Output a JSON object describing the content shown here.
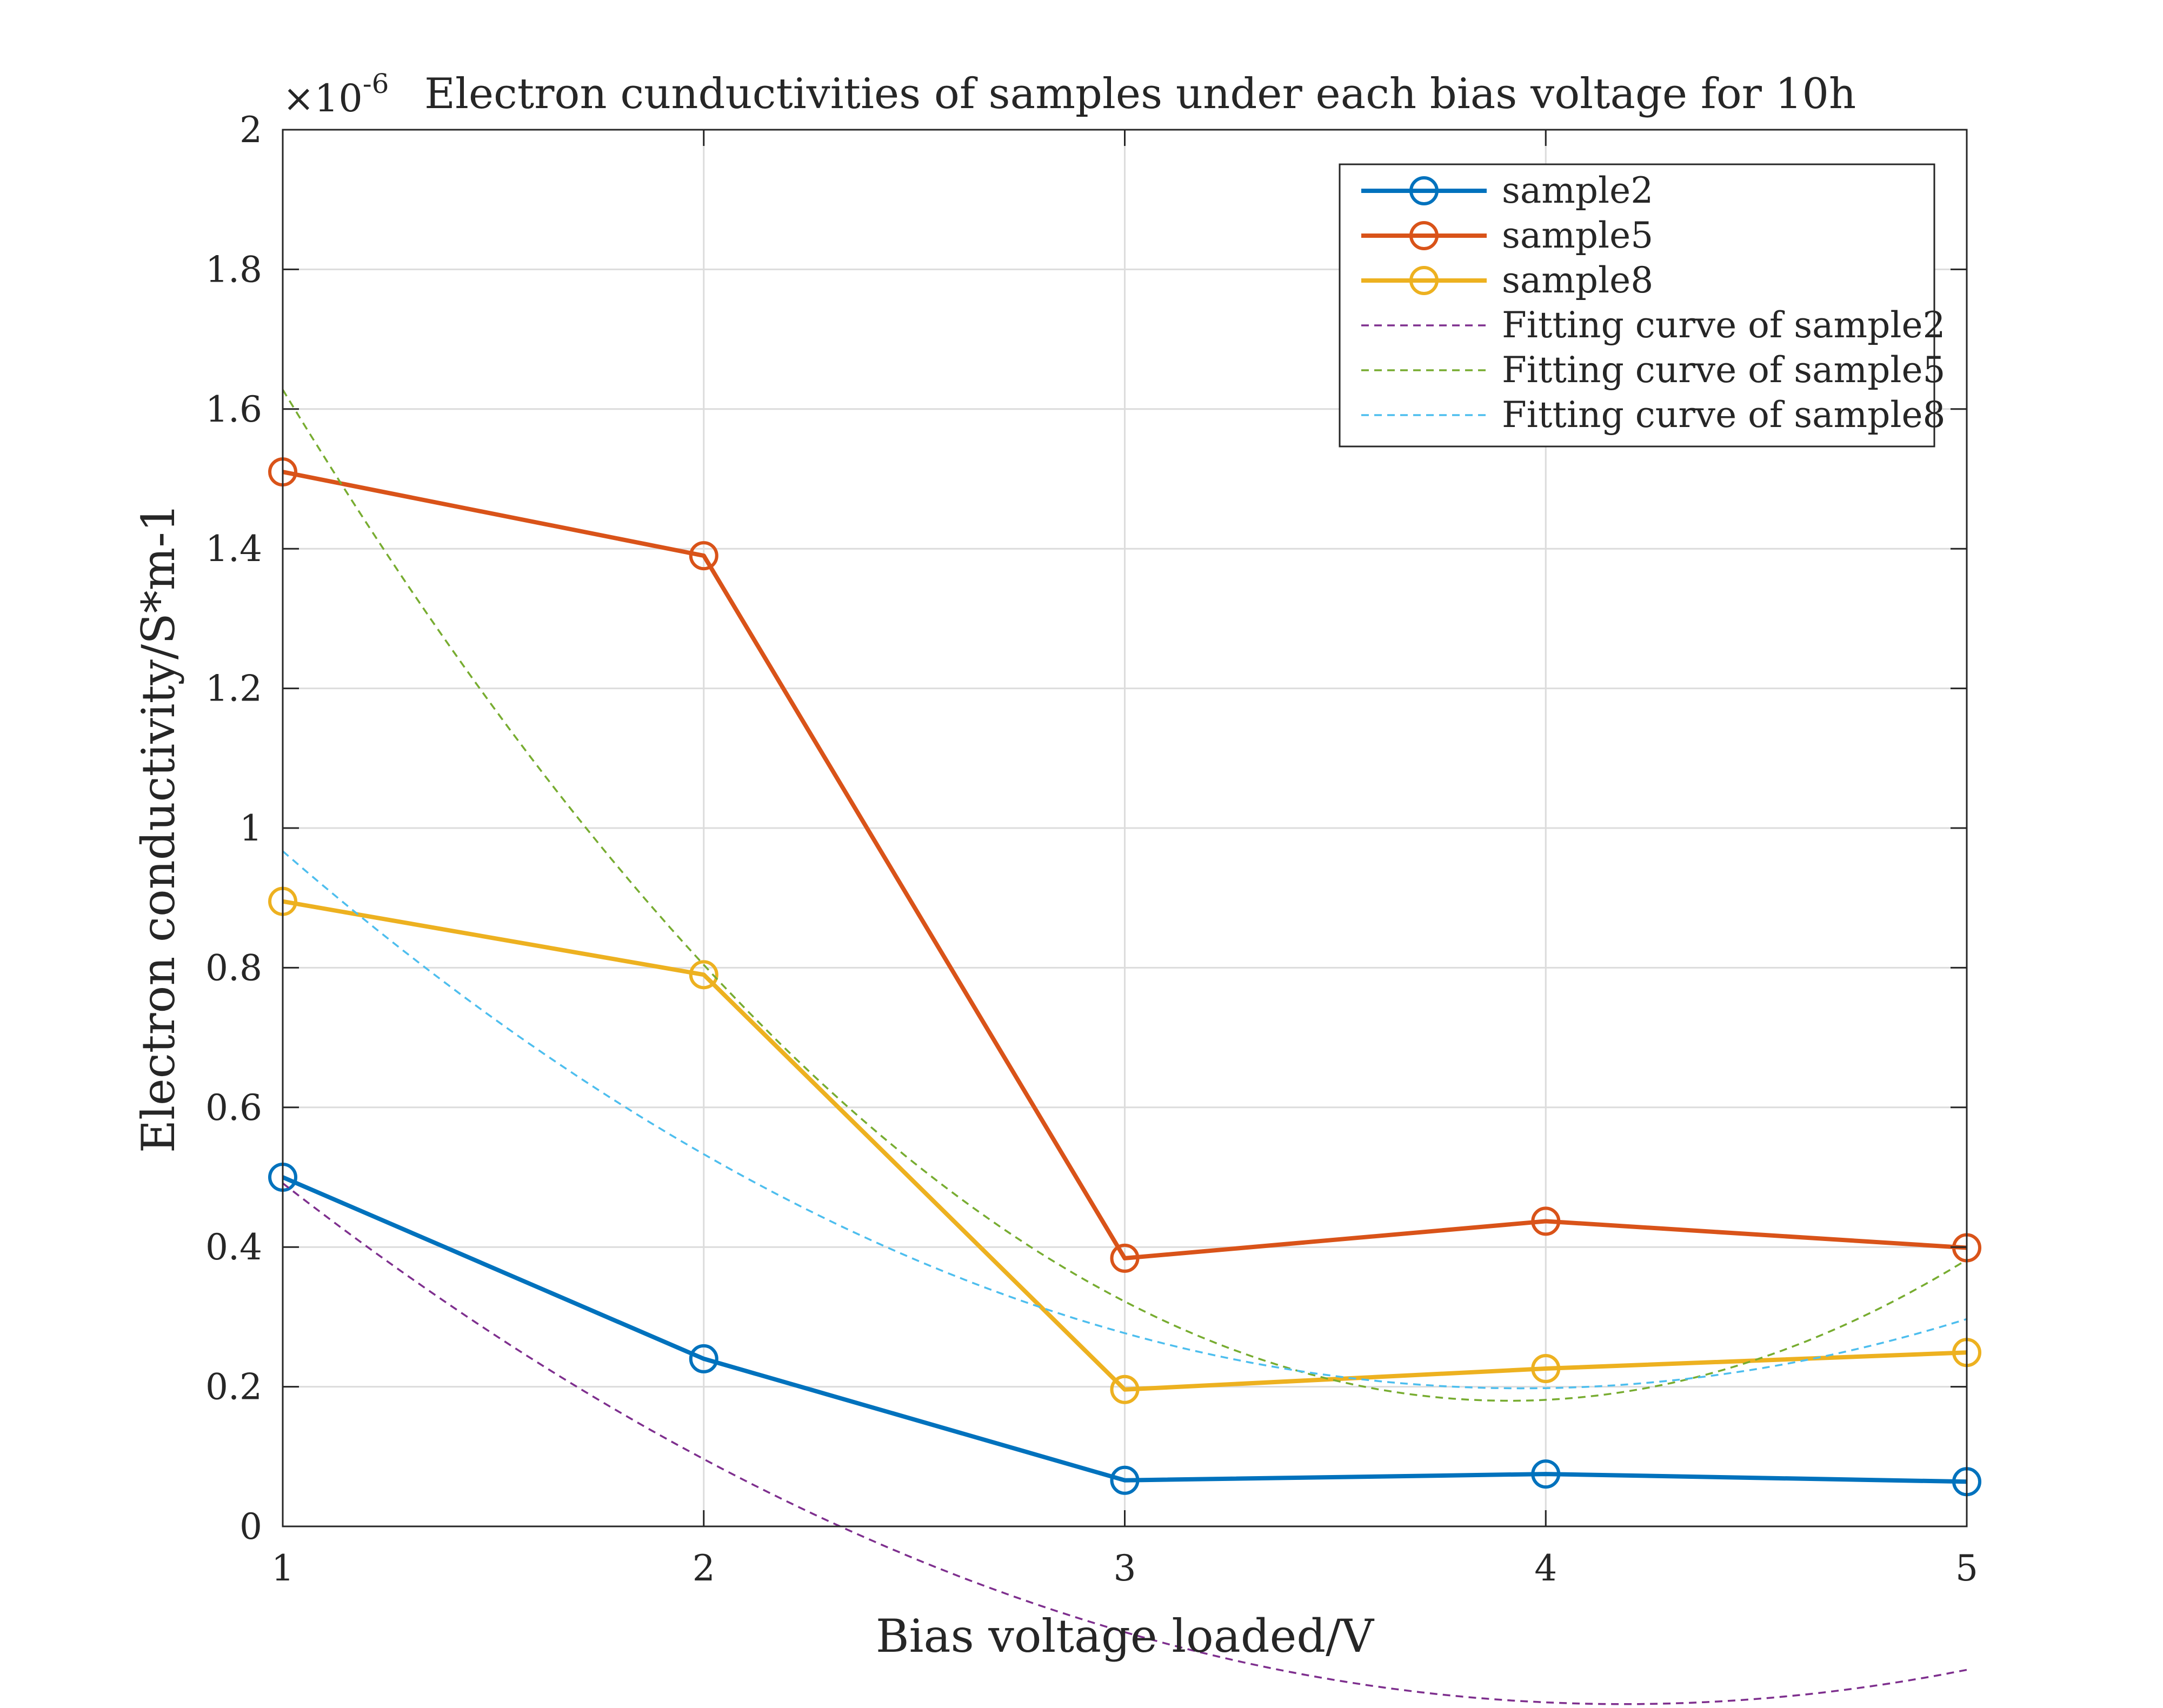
{
  "chart_data": {
    "type": "line",
    "title": "Electron cunductivities of samples under each bias voltage for 10h",
    "exponent_label": "×10",
    "exponent_power": "-6",
    "xlabel": "Bias voltage loaded/V",
    "ylabel": "Electron conductivity/S*m-1",
    "xlim": [
      1,
      5
    ],
    "ylim": [
      0,
      2
    ],
    "xticks": [
      1,
      2,
      3,
      4,
      5
    ],
    "xtick_labels": [
      "1",
      "2",
      "3",
      "4",
      "5"
    ],
    "yticks": [
      0,
      0.2,
      0.4,
      0.6,
      0.8,
      1,
      1.2,
      1.4,
      1.6,
      1.8,
      2
    ],
    "ytick_labels": [
      "0",
      "0.2",
      "0.4",
      "0.6",
      "0.8",
      "1",
      "1.2",
      "1.4",
      "1.6",
      "1.8",
      "2"
    ],
    "grid": true,
    "legend_position": "top-right",
    "x": [
      1,
      2,
      3,
      4,
      5
    ],
    "series": [
      {
        "name": "sample2",
        "style": "solid-circle",
        "color": "#0072BD",
        "values": [
          0.5,
          0.24,
          0.066,
          0.075,
          0.064
        ]
      },
      {
        "name": "sample5",
        "style": "solid-circle",
        "color": "#D95319",
        "values": [
          1.51,
          1.39,
          0.384,
          0.437,
          0.399
        ]
      },
      {
        "name": "sample8",
        "style": "solid-circle",
        "color": "#EDB120",
        "values": [
          0.895,
          0.79,
          0.196,
          0.226,
          0.249
        ]
      },
      {
        "name": "Fitting curve of sample2",
        "style": "dashed",
        "color": "#7E2F8E",
        "coefficients": [
          1.0336,
          -0.6158,
          0.0736
        ]
      },
      {
        "name": "Fitting curve of sample5",
        "style": "dashed",
        "color": "#77AC30",
        "coefficients": [
          2.7928,
          -1.3357,
          0.1707
        ]
      },
      {
        "name": "Fitting curve of sample8",
        "style": "dashed",
        "color": "#4DBEEE",
        "coefficients": [
          1.5784,
          -0.7003,
          0.0888
        ]
      }
    ]
  }
}
